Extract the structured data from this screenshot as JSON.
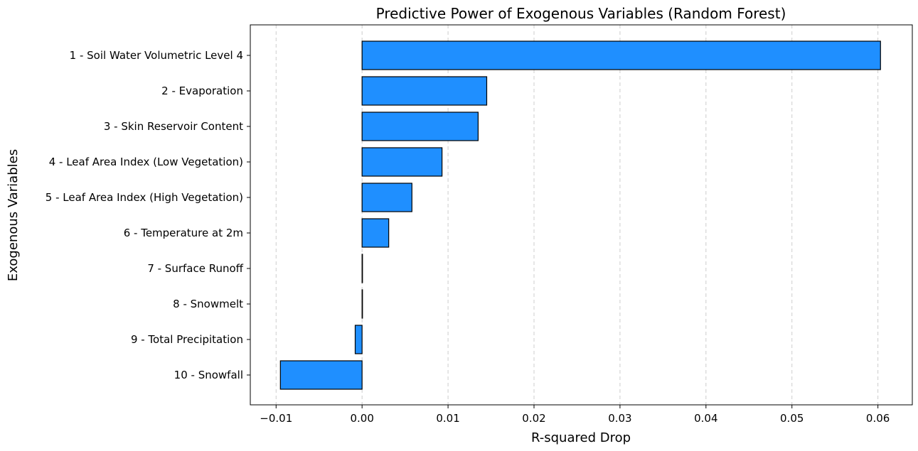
{
  "chart_data": {
    "type": "bar",
    "orientation": "horizontal",
    "title": "Predictive Power of Exogenous Variables (Random Forest)",
    "xlabel": "R-squared Drop",
    "ylabel": "Exogenous Variables",
    "categories": [
      "1 - Soil Water Volumetric Level 4",
      "2 - Evaporation",
      "3 - Skin Reservoir Content",
      "4 - Leaf Area Index (Low Vegetation)",
      "5 - Leaf Area Index (High Vegetation)",
      "6 - Temperature at 2m",
      "7 - Surface Runoff",
      "8 - Snowmelt",
      "9 - Total Precipitation",
      "10 - Snowfall"
    ],
    "values": [
      0.0603,
      0.0145,
      0.0135,
      0.0093,
      0.0058,
      0.0031,
      0.0,
      0.0,
      -0.0008,
      -0.0095
    ],
    "xlim": [
      -0.013,
      0.064
    ],
    "xticks": [
      -0.01,
      0.0,
      0.01,
      0.02,
      0.03,
      0.04,
      0.05,
      0.06
    ],
    "xtick_labels": [
      "−0.01",
      "0.00",
      "0.01",
      "0.02",
      "0.03",
      "0.04",
      "0.05",
      "0.06"
    ],
    "grid": "x-axis dashed",
    "bar_color": "#1f8fff",
    "edge_color": "#000000"
  }
}
